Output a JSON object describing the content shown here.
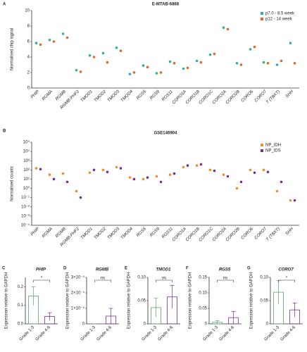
{
  "chart_data": [
    {
      "type": "dot",
      "label": "A",
      "title": "E-MTAB-6868",
      "ylabel": "Normalised chip signal",
      "categories": [
        "PHIP",
        "RGMA",
        "RGMB",
        "RGMB-PHF2",
        "TMOD1",
        "TMOD2",
        "TMOD3",
        "TMOD4",
        "RGS5",
        "RGS9",
        "RGS11",
        "CORO1A",
        "CORO1B",
        "CORO1C",
        "CORO2A",
        "CORO2B",
        "CORO6",
        "CORO7",
        "T (TBXT)",
        "SHH"
      ],
      "series": [
        {
          "name": "p7.0 - 8.5 week",
          "color": "#2bb3a0",
          "values": [
            5.8,
            6.2,
            7.0,
            2.3,
            4.2,
            4.5,
            5.2,
            1.8,
            2.9,
            1.9,
            3.4,
            2.5,
            3.5,
            4.3,
            7.8,
            3.2,
            5.0,
            3.3,
            3.0,
            5.8
          ]
        },
        {
          "name": "p12 - 14 week",
          "color": "#e0692a",
          "values": [
            5.6,
            6.0,
            6.5,
            2.1,
            4.0,
            3.3,
            4.8,
            2.0,
            2.7,
            2.0,
            3.2,
            2.6,
            3.3,
            4.4,
            7.6,
            3.0,
            5.3,
            3.2,
            3.5,
            3.2
          ]
        }
      ],
      "ylim": [
        0,
        10
      ],
      "yticks": [
        0,
        2,
        4,
        6,
        8,
        10
      ],
      "legend": "top-right"
    },
    {
      "type": "dot",
      "label": "B",
      "title": "GSE146904",
      "ylabel": "Normalised counts",
      "log": true,
      "categories": [
        "PHIP",
        "RGMA",
        "RGMB",
        "RGMB-PHF2",
        "TMOD1",
        "TMOD2",
        "TMOD3",
        "TMOD4",
        "RGS5",
        "RGS9",
        "RGS11",
        "CORO1A",
        "CORO1B",
        "CORO1C",
        "CORO2A",
        "CORO2B",
        "CORO6",
        "CORO7",
        "T (TBXT)",
        "SHH"
      ],
      "series": [
        {
          "name": "NP_IDH",
          "color": "#f28e2b",
          "values": [
            150,
            30,
            40,
            0.5,
            50,
            100,
            200,
            15,
            10,
            20,
            30,
            200,
            300,
            100,
            30,
            1,
            100,
            100,
            0.5,
            0.05
          ]
        },
        {
          "name": "NP_IDS",
          "color": "#7b2d8e",
          "values": [
            120,
            10,
            5,
            0.1,
            100,
            60,
            150,
            10,
            15,
            5,
            40,
            300,
            400,
            80,
            20,
            5,
            50,
            60,
            5,
            0.05
          ]
        }
      ],
      "ylim": [
        0.0001,
        100000
      ],
      "yticks": [
        {
          "value": 0.0001,
          "label": "10⁻⁴"
        },
        {
          "value": 0.001,
          "label": "10⁻³"
        },
        {
          "value": 0.01,
          "label": "10⁻²"
        },
        {
          "value": 0.1,
          "label": "10⁻¹"
        },
        {
          "value": 1,
          "label": "10⁰"
        },
        {
          "value": 10,
          "label": "10¹"
        },
        {
          "value": 100,
          "label": "10²"
        },
        {
          "value": 1000,
          "label": "10³"
        },
        {
          "value": 10000,
          "label": "10⁴"
        },
        {
          "value": 100000,
          "label": "10⁵"
        }
      ],
      "legend": "top-right"
    },
    {
      "type": "bar",
      "label": "C",
      "title": "PHIP",
      "ylabel": "Expression relative to GAPDH",
      "categories": [
        "Grade 1-3",
        "Grade 4-6"
      ],
      "values": [
        0.15,
        0.04
      ],
      "errors": [
        0.05,
        0.02
      ],
      "colors": [
        "#5aa469",
        "#7b2d8e"
      ],
      "sig": "*",
      "ylim": [
        0,
        0.25
      ],
      "yticks": [
        {
          "value": 0,
          "label": "0.0"
        },
        {
          "value": 0.1,
          "label": "0.1"
        },
        {
          "value": 0.2,
          "label": "0.2"
        }
      ]
    },
    {
      "type": "bar",
      "label": "D",
      "title": "RGMB",
      "ylabel": "Expression relative to GAPDH",
      "categories": [
        "Grade 1-3",
        "Grade 4-6"
      ],
      "values": [
        0.0,
        5e-05
      ],
      "errors": [
        0.0,
        5e-05
      ],
      "colors": [
        "#5aa469",
        "#7b2d8e"
      ],
      "sig": "ns",
      "ylim": [
        0,
        0.0003
      ],
      "yticks": [
        0,
        {
          "value": 0.0001,
          "label": "1×10⁻⁴"
        },
        {
          "value": 0.0002,
          "label": "2×10⁻⁴"
        },
        {
          "value": 0.0003,
          "label": "3×10⁻⁴"
        }
      ]
    },
    {
      "type": "bar",
      "label": "E",
      "title": "TMOD1",
      "ylabel": "Expression relative to GAPDH",
      "categories": [
        "Grade 1-3",
        "Grade 4-6"
      ],
      "values": [
        0.035,
        0.058
      ],
      "errors": [
        0.02,
        0.025
      ],
      "colors": [
        "#5aa469",
        "#7b2d8e"
      ],
      "sig": "ns",
      "ylim": [
        0,
        0.1
      ],
      "yticks": [
        0,
        {
          "value": 0.05,
          "label": "0.05"
        },
        {
          "value": 0.1,
          "label": "0.10"
        }
      ]
    },
    {
      "type": "bar",
      "label": "F",
      "title": "RGS5",
      "ylabel": "Expression relative to GAPDH",
      "categories": [
        "Grade 1-3",
        "Grade 4-6"
      ],
      "values": [
        0.005,
        0.02
      ],
      "errors": [
        0.005,
        0.02
      ],
      "colors": [
        "#5aa469",
        "#7b2d8e"
      ],
      "sig": "ns",
      "ylim": [
        0,
        0.15
      ],
      "yticks": [
        0,
        {
          "value": 0.05,
          "label": "0.05"
        },
        {
          "value": 0.1,
          "label": "0.10"
        },
        {
          "value": 0.15,
          "label": "0.15"
        }
      ]
    },
    {
      "type": "bar",
      "label": "G",
      "title": "CORO7",
      "ylabel": "Expression relative to GAPDH",
      "categories": [
        "Grade 1-3",
        "Grade 4-6"
      ],
      "values": [
        0.068,
        0.03
      ],
      "errors": [
        0.025,
        0.015
      ],
      "colors": [
        "#5aa469",
        "#7b2d8e"
      ],
      "sig": "*",
      "ylim": [
        0,
        0.1
      ],
      "yticks": [
        0,
        {
          "value": 0.05,
          "label": "0.05"
        },
        {
          "value": 0.1,
          "label": "0.10"
        }
      ]
    }
  ]
}
